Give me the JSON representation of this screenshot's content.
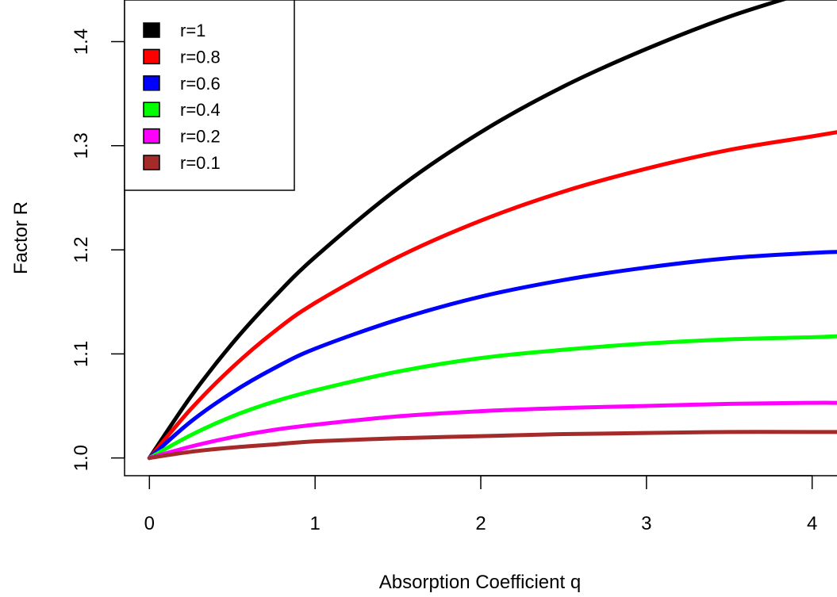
{
  "chart_data": {
    "type": "line",
    "title": "",
    "xlabel": "Absorption Coefficient q",
    "ylabel": "Factor R",
    "xlim": [
      -0.15,
      4.15
    ],
    "ylim": [
      0.983,
      1.44
    ],
    "xticks": [
      "0",
      "1",
      "2",
      "3",
      "4"
    ],
    "yticks": [
      "1.0",
      "1.1",
      "1.2",
      "1.3",
      "1.4"
    ],
    "x": [
      0,
      0.25,
      0.5,
      0.75,
      1,
      1.5,
      2,
      2.5,
      3,
      3.5,
      4,
      4.15
    ],
    "series": [
      {
        "name": "r=1",
        "color": "#000000",
        "values": [
          1.0,
          1.059,
          1.11,
          1.154,
          1.193,
          1.259,
          1.313,
          1.357,
          1.393,
          1.424,
          1.449,
          1.456
        ]
      },
      {
        "name": "r=0.8",
        "color": "#ff0000",
        "values": [
          1.0,
          1.047,
          1.087,
          1.121,
          1.149,
          1.193,
          1.228,
          1.256,
          1.278,
          1.296,
          1.309,
          1.313
        ]
      },
      {
        "name": "r=0.6",
        "color": "#0000ff",
        "values": [
          1.0,
          1.035,
          1.063,
          1.086,
          1.105,
          1.133,
          1.155,
          1.171,
          1.183,
          1.192,
          1.197,
          1.198
        ]
      },
      {
        "name": "r=0.4",
        "color": "#00ff00",
        "values": [
          1.0,
          1.022,
          1.04,
          1.054,
          1.065,
          1.083,
          1.096,
          1.104,
          1.11,
          1.114,
          1.116,
          1.117
        ]
      },
      {
        "name": "r=0.2",
        "color": "#ff00ff",
        "values": [
          1.0,
          1.011,
          1.02,
          1.027,
          1.032,
          1.04,
          1.045,
          1.048,
          1.05,
          1.052,
          1.053,
          1.053
        ]
      },
      {
        "name": "r=0.1",
        "color": "#a52a2a",
        "values": [
          1.0,
          1.006,
          1.01,
          1.013,
          1.016,
          1.019,
          1.021,
          1.023,
          1.024,
          1.025,
          1.025,
          1.025
        ]
      }
    ],
    "legend": {
      "position": "top-left"
    },
    "grid": false
  }
}
